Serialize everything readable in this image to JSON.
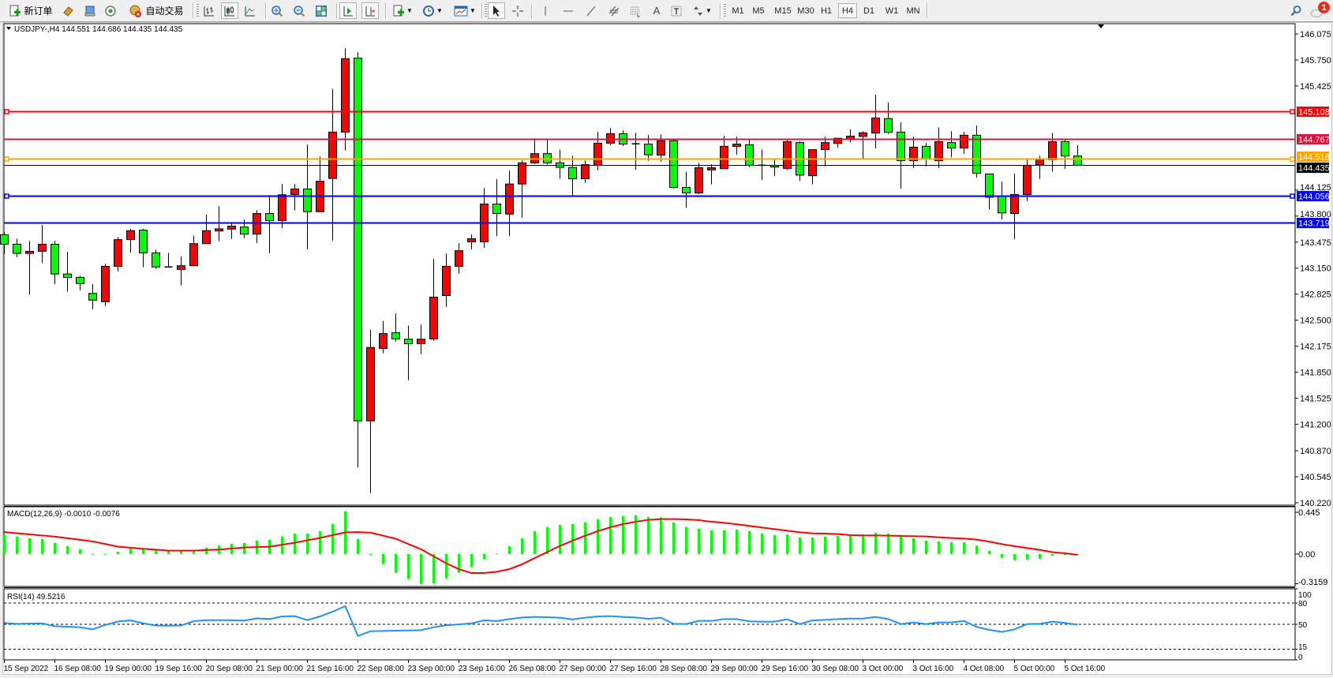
{
  "toolbar": {
    "new_order_label": "新订单",
    "auto_trading_label": "自动交易",
    "timeframes": [
      "M1",
      "M5",
      "M15",
      "M30",
      "H1",
      "H4",
      "D1",
      "W1",
      "MN"
    ],
    "active_timeframe": "H4",
    "notification_count": "1",
    "icons": [
      "new-order-icon",
      "market-watch-icon",
      "navigator-icon",
      "signals-icon",
      "auto-trading-icon",
      "bar-chart-icon",
      "candlestick-icon",
      "line-chart-icon",
      "zoom-in-icon",
      "zoom-out-icon",
      "tile-windows-icon",
      "auto-scroll-icon",
      "chart-shift-icon",
      "indicators-icon",
      "periods-icon",
      "templates-icon",
      "cursor-icon",
      "crosshair-icon",
      "vertical-line-icon",
      "horizontal-line-icon",
      "trendline-icon",
      "equidistant-channel-icon",
      "fibonacci-icon",
      "text-icon",
      "text-label-icon",
      "arrows-icon",
      "search-icon",
      "notification-icon"
    ]
  },
  "chart": {
    "symbol_header": "USDJPY-,H4  144.551 144.686 144.435 144.435",
    "price_ticks": [
      "146.075",
      "145.750",
      "145.425",
      "144.125",
      "143.800",
      "143.475",
      "143.150",
      "142.825",
      "142.500",
      "142.175",
      "141.850",
      "141.525",
      "141.200",
      "140.870",
      "140.545",
      "140.220"
    ],
    "horizontal_lines": [
      {
        "price": 145.108,
        "label": "145.108",
        "color": "#ff0000",
        "markers": true
      },
      {
        "price": 144.767,
        "label": "144.767",
        "color": "#dc143c",
        "markers": false
      },
      {
        "price": 144.518,
        "label": "144.518",
        "color": "#ffa500",
        "markers": true
      },
      {
        "price": 144.435,
        "label": "144.435",
        "color": "#000000",
        "markers": false,
        "bid_line": true
      },
      {
        "price": 144.056,
        "label": "144.056",
        "color": "#0000ff",
        "markers": true
      },
      {
        "price": 143.719,
        "label": "143.719",
        "color": "#0000ff",
        "markers": false
      }
    ],
    "colors": {
      "bull": "#ff0000",
      "bear": "#00ff00",
      "macd_hist": "#00ff00",
      "macd_signal": "#ff0000",
      "rsi": "#1e90ff"
    },
    "macd_header": "MACD(12,26,9) -0.0010 -0.0076",
    "macd_ticks": [
      "0.445",
      "0.00",
      "-0.3159"
    ],
    "rsi_header": "RSI(14) 49.5216",
    "rsi_ticks": [
      "100",
      "80",
      "50",
      "15",
      "0"
    ],
    "time_labels": [
      "15 Sep 2022",
      "16 Sep 08:00",
      "19 Sep 00:00",
      "19 Sep 16:00",
      "20 Sep 08:00",
      "21 Sep 00:00",
      "21 Sep 16:00",
      "22 Sep 08:00",
      "23 Sep 00:00",
      "23 Sep 16:00",
      "26 Sep 08:00",
      "27 Sep 00:00",
      "27 Sep 16:00",
      "28 Sep 08:00",
      "29 Sep 00:00",
      "29 Sep 16:00",
      "30 Sep 08:00",
      "3 Oct 00:00",
      "3 Oct 16:00",
      "4 Oct 08:00",
      "5 Oct 00:00",
      "5 Oct 16:00"
    ]
  },
  "chart_data": [
    {
      "type": "candlestick",
      "symbol": "USDJPY-",
      "timeframe": "H4",
      "ylim": [
        140.22,
        146.075
      ],
      "grid": false,
      "bull_color": "red",
      "bear_color": "green",
      "ohlc": [
        [
          143.568,
          143.595,
          143.326,
          143.449
        ],
        [
          143.449,
          143.518,
          143.288,
          143.334
        ],
        [
          143.334,
          143.491,
          142.82,
          143.361
        ],
        [
          143.361,
          143.69,
          143.211,
          143.449
        ],
        [
          143.449,
          143.491,
          142.95,
          143.077
        ],
        [
          143.077,
          143.353,
          142.854,
          143.035
        ],
        [
          143.035,
          143.057,
          142.873,
          142.958
        ],
        [
          142.835,
          142.95,
          142.636,
          142.751
        ],
        [
          142.731,
          143.203,
          142.674,
          143.173
        ],
        [
          143.173,
          143.537,
          143.111,
          143.506
        ],
        [
          143.506,
          143.641,
          143.345,
          143.618
        ],
        [
          143.625,
          143.641,
          143.161,
          143.341
        ],
        [
          143.341,
          143.38,
          143.142,
          143.165
        ],
        [
          143.17,
          143.341,
          143.165,
          143.165
        ],
        [
          143.134,
          143.295,
          142.935,
          143.18
        ],
        [
          143.18,
          143.556,
          143.18,
          143.456
        ],
        [
          143.456,
          143.817,
          143.456,
          143.618
        ],
        [
          143.614,
          143.924,
          143.487,
          143.641
        ],
        [
          143.637,
          143.71,
          143.514,
          143.675
        ],
        [
          143.664,
          143.759,
          143.525,
          143.575
        ],
        [
          143.575,
          143.875,
          143.464,
          143.832
        ],
        [
          143.832,
          144.062,
          143.338,
          143.744
        ],
        [
          143.744,
          144.201,
          143.652,
          144.066
        ],
        [
          144.07,
          144.201,
          143.871,
          144.139
        ],
        [
          144.139,
          144.695,
          143.387,
          143.855
        ],
        [
          143.855,
          144.546,
          143.855,
          144.235
        ],
        [
          144.27,
          145.39,
          143.495,
          144.849
        ],
        [
          144.849,
          145.896,
          144.619,
          145.766
        ],
        [
          145.773,
          145.846,
          140.66,
          141.243
        ],
        [
          141.243,
          142.379,
          140.342,
          142.16
        ],
        [
          142.148,
          142.49,
          142.087,
          142.333
        ],
        [
          142.344,
          142.586,
          142.233,
          142.267
        ],
        [
          142.263,
          142.432,
          141.749,
          142.206
        ],
        [
          142.206,
          142.448,
          142.075,
          142.263
        ],
        [
          142.267,
          143.265,
          142.244,
          142.789
        ],
        [
          142.808,
          143.334,
          142.666,
          143.173
        ],
        [
          143.173,
          143.46,
          143.081,
          143.368
        ],
        [
          143.479,
          143.571,
          143.387,
          143.518
        ],
        [
          143.479,
          144.151,
          143.403,
          143.951
        ],
        [
          143.951,
          144.262,
          143.549,
          143.832
        ],
        [
          143.825,
          144.369,
          143.549,
          144.201
        ],
        [
          144.201,
          144.496,
          143.782,
          144.465
        ],
        [
          144.465,
          144.772,
          144.45,
          144.58
        ],
        [
          144.58,
          144.753,
          144.446,
          144.465
        ],
        [
          144.465,
          144.63,
          144.266,
          144.408
        ],
        [
          144.408,
          144.554,
          144.047,
          144.266
        ],
        [
          144.266,
          144.496,
          144.216,
          144.442
        ],
        [
          144.435,
          144.853,
          144.373,
          144.711
        ],
        [
          144.711,
          144.899,
          144.688,
          144.83
        ],
        [
          144.83,
          144.872,
          144.676,
          144.699
        ],
        [
          144.703,
          144.841,
          144.381,
          144.703
        ],
        [
          144.699,
          144.814,
          144.492,
          144.565
        ],
        [
          144.561,
          144.822,
          144.481,
          144.741
        ],
        [
          144.741,
          144.753,
          144.143,
          144.158
        ],
        [
          144.158,
          144.35,
          143.901,
          144.089
        ],
        [
          144.089,
          144.465,
          144.074,
          144.404
        ],
        [
          144.377,
          144.446,
          144.197,
          144.404
        ],
        [
          144.392,
          144.803,
          144.392,
          144.672
        ],
        [
          144.669,
          144.791,
          144.565,
          144.699
        ],
        [
          144.692,
          144.765,
          144.408,
          144.435
        ],
        [
          144.442,
          144.634,
          144.251,
          144.435
        ],
        [
          144.431,
          144.515,
          144.3,
          144.412
        ],
        [
          144.396,
          144.765,
          144.377,
          144.73
        ],
        [
          144.718,
          144.734,
          144.239,
          144.312
        ],
        [
          144.304,
          144.63,
          144.197,
          144.63
        ],
        [
          144.63,
          144.791,
          144.423,
          144.718
        ],
        [
          144.707,
          144.772,
          144.653,
          144.772
        ],
        [
          144.757,
          144.883,
          144.722,
          144.799
        ],
        [
          144.795,
          144.86,
          144.507,
          144.841
        ],
        [
          144.837,
          145.317,
          144.646,
          145.025
        ],
        [
          145.018,
          145.217,
          144.826,
          144.845
        ],
        [
          144.849,
          144.972,
          144.143,
          144.492
        ],
        [
          144.492,
          144.791,
          144.4,
          144.661
        ],
        [
          144.672,
          144.715,
          144.419,
          144.511
        ],
        [
          144.492,
          144.91,
          144.4,
          144.73
        ],
        [
          144.718,
          144.86,
          144.534,
          144.649
        ],
        [
          144.649,
          144.853,
          144.577,
          144.81
        ],
        [
          144.81,
          144.929,
          144.281,
          144.335
        ],
        [
          144.327,
          144.327,
          143.886,
          144.036
        ],
        [
          144.051,
          144.231,
          143.759,
          143.84
        ],
        [
          143.832,
          144.331,
          143.51,
          144.07
        ],
        [
          144.07,
          144.511,
          143.986,
          144.435
        ],
        [
          144.438,
          144.554,
          144.262,
          144.504
        ],
        [
          144.504,
          144.841,
          144.358,
          144.73
        ],
        [
          144.73,
          144.761,
          144.389,
          144.55
        ],
        [
          144.551,
          144.686,
          144.435,
          144.435
        ]
      ]
    },
    {
      "type": "bar",
      "name": "MACD(12,26,9)",
      "ylim": [
        -0.3159,
        0.445
      ],
      "histogram": [
        0.203,
        0.186,
        0.169,
        0.161,
        0.118,
        0.085,
        0.051,
        0.003,
        0.003,
        0.025,
        0.065,
        0.054,
        0.048,
        0.034,
        0.031,
        0.028,
        0.068,
        0.093,
        0.11,
        0.118,
        0.144,
        0.152,
        0.186,
        0.22,
        0.22,
        0.245,
        0.321,
        0.456,
        0.161,
        -0.003,
        -0.107,
        -0.2,
        -0.268,
        -0.318,
        -0.31,
        -0.259,
        -0.2,
        -0.138,
        -0.056,
        0.008,
        0.084,
        0.168,
        0.244,
        0.286,
        0.311,
        0.319,
        0.336,
        0.37,
        0.395,
        0.403,
        0.412,
        0.395,
        0.392,
        0.336,
        0.286,
        0.269,
        0.252,
        0.252,
        0.261,
        0.244,
        0.218,
        0.202,
        0.21,
        0.176,
        0.176,
        0.185,
        0.193,
        0.202,
        0.21,
        0.227,
        0.218,
        0.185,
        0.168,
        0.143,
        0.134,
        0.126,
        0.126,
        0.092,
        0.034,
        -0.039,
        -0.067,
        -0.059,
        -0.05,
        -0.017,
        0.0,
        -0.001
      ],
      "signal": [
        0.234,
        0.222,
        0.21,
        0.198,
        0.186,
        0.169,
        0.152,
        0.135,
        0.107,
        0.079,
        0.068,
        0.056,
        0.047,
        0.037,
        0.037,
        0.037,
        0.043,
        0.048,
        0.059,
        0.07,
        0.075,
        0.079,
        0.1,
        0.121,
        0.147,
        0.172,
        0.202,
        0.231,
        0.234,
        0.228,
        0.196,
        0.163,
        0.107,
        0.051,
        -0.024,
        -0.099,
        -0.16,
        -0.202,
        -0.202,
        -0.188,
        -0.16,
        -0.109,
        -0.042,
        0.022,
        0.087,
        0.143,
        0.196,
        0.244,
        0.286,
        0.319,
        0.345,
        0.364,
        0.373,
        0.373,
        0.37,
        0.361,
        0.345,
        0.333,
        0.317,
        0.3,
        0.283,
        0.266,
        0.249,
        0.232,
        0.221,
        0.218,
        0.213,
        0.202,
        0.199,
        0.199,
        0.196,
        0.193,
        0.19,
        0.188,
        0.179,
        0.171,
        0.165,
        0.154,
        0.132,
        0.106,
        0.084,
        0.064,
        0.045,
        0.02,
        0.008,
        -0.008
      ]
    },
    {
      "type": "line",
      "name": "RSI(14)",
      "ylim": [
        0,
        100
      ],
      "levels": [
        80,
        50,
        15
      ],
      "values": [
        51.8,
        50.7,
        51.1,
        51.4,
        47.4,
        46.6,
        45.9,
        42.9,
        49.2,
        54.0,
        55.5,
        51.4,
        48.4,
        48.1,
        48.4,
        54.4,
        55.9,
        55.9,
        55.9,
        55.1,
        58.5,
        57.4,
        61.1,
        61.5,
        55.9,
        61.1,
        67.8,
        75.6,
        33.6,
        40.3,
        40.7,
        41.1,
        41.4,
        41.8,
        45.9,
        48.8,
        49.9,
        51.4,
        55.7,
        54.6,
        57.4,
        59.6,
        60.4,
        60.0,
        59.3,
        57.0,
        59.3,
        61.1,
        61.5,
        60.4,
        59.6,
        57.8,
        59.3,
        50.7,
        50.4,
        54.8,
        54.8,
        57.4,
        57.4,
        54.1,
        53.7,
        53.7,
        57.0,
        50.4,
        55.6,
        56.3,
        57.4,
        58.1,
        58.1,
        60.4,
        57.4,
        50.4,
        52.6,
        50.4,
        52.6,
        52.6,
        54.8,
        46.3,
        42.2,
        39.3,
        43.0,
        50.4,
        50.7,
        53.7,
        51.9,
        49.5
      ]
    }
  ]
}
